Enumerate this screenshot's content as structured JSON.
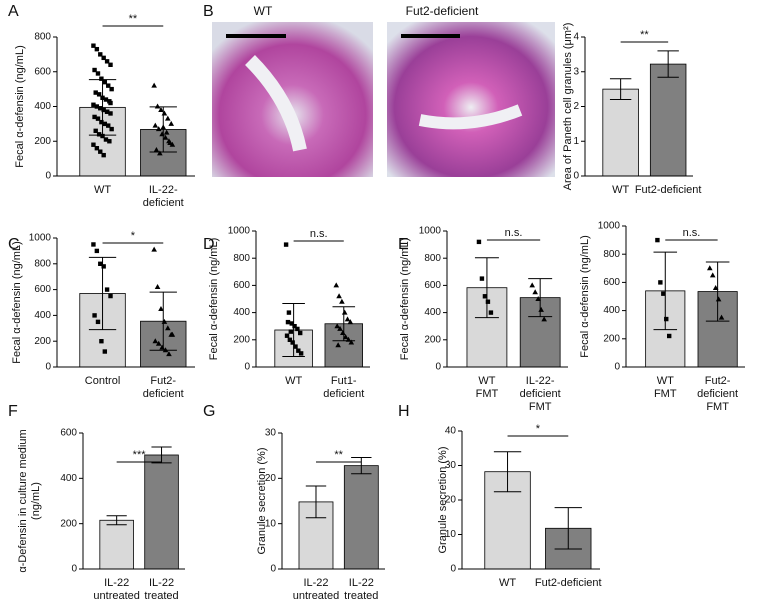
{
  "panel_b_images": {
    "labels": [
      "WT",
      "Fut2-deficient"
    ]
  },
  "chart_data": [
    {
      "type": "bar",
      "panel": "A",
      "ylabel": "Fecal α-defensin (ng/mL)",
      "categories": [
        "WT",
        "IL-22-\ndeficient"
      ],
      "values": [
        395,
        268
      ],
      "errors": [
        160,
        130
      ],
      "colors": [
        "#d9d9d9",
        "#808080"
      ],
      "markers": [
        "square",
        "triangle"
      ],
      "ylim": [
        0,
        800
      ],
      "yticks": [
        0,
        200,
        400,
        600,
        800
      ],
      "annotation": "**",
      "points": [
        [
          750,
          730,
          700,
          680,
          660,
          640,
          610,
          590,
          560,
          540,
          520,
          500,
          480,
          470,
          450,
          440,
          430,
          410,
          400,
          390,
          380,
          370,
          360,
          340,
          330,
          310,
          300,
          290,
          270,
          260,
          240,
          230,
          210,
          200,
          180,
          160,
          140,
          120,
          370,
          420
        ],
        [
          520,
          400,
          380,
          360,
          330,
          300,
          290,
          270,
          240,
          220,
          200,
          180,
          150,
          130,
          280,
          250,
          190
        ]
      ]
    },
    {
      "type": "bar",
      "panel": "B",
      "ylabel": "Area of Paneth cell granules (μm²)",
      "categories": [
        "WT",
        "Fut2-deficient"
      ],
      "values": [
        2.5,
        3.22
      ],
      "errors": [
        0.3,
        0.38
      ],
      "colors": [
        "#d9d9d9",
        "#808080"
      ],
      "ylim": [
        0,
        4
      ],
      "yticks": [
        0,
        1,
        2,
        3,
        4
      ],
      "annotation": "**"
    },
    {
      "type": "bar",
      "panel": "C",
      "ylabel": "Fecal α-defensin (ng/mL)",
      "categories": [
        "Control",
        "Fut2-\ndeficient"
      ],
      "values": [
        570,
        355
      ],
      "errors": [
        280,
        225
      ],
      "colors": [
        "#d9d9d9",
        "#808080"
      ],
      "markers": [
        "square",
        "triangle"
      ],
      "ylim": [
        0,
        1000
      ],
      "yticks": [
        0,
        200,
        400,
        600,
        800,
        1000
      ],
      "annotation": "*",
      "points": [
        [
          950,
          900,
          800,
          780,
          600,
          550,
          400,
          350,
          200,
          120
        ],
        [
          910,
          620,
          450,
          350,
          300,
          250,
          200,
          180,
          150,
          130,
          100,
          250
        ]
      ]
    },
    {
      "type": "bar",
      "panel": "D",
      "ylabel": "Fecal α-defensin (ng/mL)",
      "categories": [
        "WT",
        "Fut1-\ndeficient"
      ],
      "values": [
        272,
        318
      ],
      "errors": [
        195,
        125
      ],
      "colors": [
        "#d9d9d9",
        "#808080"
      ],
      "markers": [
        "square",
        "triangle"
      ],
      "ylim": [
        0,
        1000
      ],
      "yticks": [
        0,
        200,
        400,
        600,
        800,
        1000
      ],
      "annotation": "n.s.",
      "points": [
        [
          900,
          400,
          320,
          300,
          280,
          250,
          230,
          200,
          180,
          150,
          120,
          100,
          330,
          260
        ],
        [
          600,
          520,
          480,
          400,
          350,
          330,
          300,
          280,
          250,
          220,
          200,
          180,
          160
        ]
      ]
    },
    {
      "type": "bar",
      "panel": "E",
      "ylabel": "Fecal α-defensin (ng/mL)",
      "categories": [
        "WT\nFMT",
        "IL-22-\ndeficient\nFMT"
      ],
      "values": [
        583,
        510
      ],
      "errors": [
        220,
        140
      ],
      "colors": [
        "#d9d9d9",
        "#808080"
      ],
      "markers": [
        "square",
        "triangle"
      ],
      "ylim": [
        0,
        1000
      ],
      "yticks": [
        0,
        200,
        400,
        600,
        800,
        1000
      ],
      "annotation": "n.s.",
      "points": [
        [
          920,
          650,
          520,
          480,
          400
        ],
        [
          600,
          550,
          500,
          420,
          350
        ]
      ]
    },
    {
      "type": "bar",
      "ylabel": "Fecal α-defensin (ng/mL)",
      "categories": [
        "WT\nFMT",
        "Fut2-\ndeficient\nFMT"
      ],
      "values": [
        540,
        535
      ],
      "errors": [
        275,
        210
      ],
      "colors": [
        "#d9d9d9",
        "#808080"
      ],
      "markers": [
        "square",
        "triangle"
      ],
      "ylim": [
        0,
        1000
      ],
      "yticks": [
        0,
        200,
        400,
        600,
        800,
        1000
      ],
      "annotation": "n.s.",
      "points": [
        [
          900,
          600,
          520,
          340,
          220
        ],
        [
          700,
          650,
          560,
          480,
          350
        ]
      ]
    },
    {
      "type": "bar",
      "panel": "F",
      "ylabel": "α-Defensin in culture medium\n(ng/mL)",
      "categories": [
        "IL-22\nuntreated",
        "IL-22\ntreated"
      ],
      "values": [
        215,
        503
      ],
      "errors": [
        20,
        35
      ],
      "colors": [
        "#d9d9d9",
        "#808080"
      ],
      "ylim": [
        0,
        600
      ],
      "yticks": [
        0,
        200,
        400,
        600
      ],
      "annotation": "***"
    },
    {
      "type": "bar",
      "panel": "G",
      "ylabel": "Granule secretion (%)",
      "categories": [
        "IL-22\nuntreated",
        "IL-22\ntreated"
      ],
      "values": [
        14.8,
        22.8
      ],
      "errors": [
        3.5,
        1.8
      ],
      "colors": [
        "#d9d9d9",
        "#808080"
      ],
      "ylim": [
        0,
        30
      ],
      "yticks": [
        0,
        10,
        20,
        30
      ],
      "annotation": "**"
    },
    {
      "type": "bar",
      "panel": "H",
      "ylabel": "Granule secretion (%)",
      "categories": [
        "WT",
        "Fut2-deficient"
      ],
      "values": [
        28.2,
        11.8
      ],
      "errors": [
        5.8,
        6.0
      ],
      "colors": [
        "#d9d9d9",
        "#808080"
      ],
      "ylim": [
        0,
        40
      ],
      "yticks": [
        0,
        10,
        20,
        30,
        40
      ],
      "annotation": "*"
    }
  ]
}
